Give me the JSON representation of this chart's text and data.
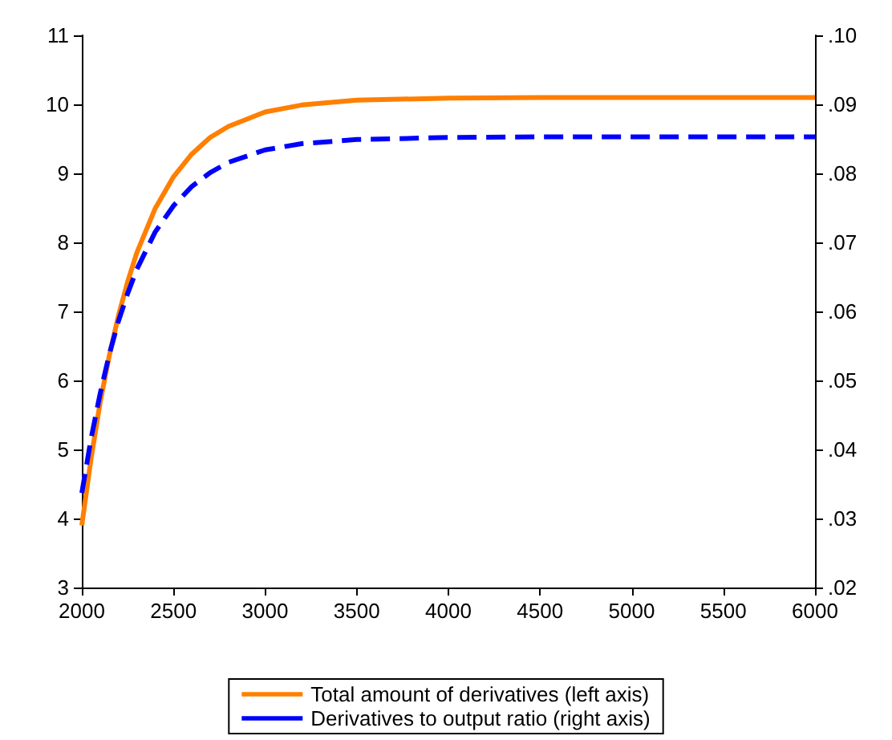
{
  "chart_data": {
    "type": "line",
    "x": [
      2000,
      2050,
      2100,
      2150,
      2200,
      2250,
      2300,
      2400,
      2500,
      2600,
      2700,
      2800,
      3000,
      3200,
      3500,
      4000,
      4500,
      5000,
      6000
    ],
    "series": [
      {
        "name": "Total amount of derivatives (left axis)",
        "color": "#ff7f00",
        "line_style": "solid",
        "values": [
          3.9,
          4.86,
          5.68,
          6.36,
          6.94,
          7.43,
          7.85,
          8.49,
          8.95,
          9.28,
          9.52,
          9.68,
          9.89,
          9.99,
          10.06,
          10.09,
          10.1,
          10.1,
          10.1
        ]
      },
      {
        "name": "Derivatives to output ratio (right axis)",
        "color": "#0000ff",
        "line_style": "dashed",
        "axis": "y2",
        "values": [
          0.0337,
          0.0415,
          0.0481,
          0.0538,
          0.0586,
          0.0626,
          0.0661,
          0.0715,
          0.0753,
          0.0781,
          0.0801,
          0.0816,
          0.0834,
          0.0843,
          0.0849,
          0.0852,
          0.0853,
          0.0853,
          0.0853
        ]
      }
    ],
    "xlim": [
      2000,
      6000
    ],
    "xticks": [
      2000,
      2500,
      3000,
      3500,
      4000,
      4500,
      5000,
      5500,
      6000
    ],
    "ylim": [
      3,
      11
    ],
    "yticks": [
      3,
      4,
      5,
      6,
      7,
      8,
      9,
      10,
      11
    ],
    "y2lim": [
      0.02,
      0.1
    ],
    "y2ticks": [
      {
        "value": 0.02,
        "label": ".02"
      },
      {
        "value": 0.03,
        "label": ".03"
      },
      {
        "value": 0.04,
        "label": ".04"
      },
      {
        "value": 0.05,
        "label": ".05"
      },
      {
        "value": 0.06,
        "label": ".06"
      },
      {
        "value": 0.07,
        "label": ".07"
      },
      {
        "value": 0.08,
        "label": ".08"
      },
      {
        "value": 0.09,
        "label": ".09"
      },
      {
        "value": 0.1,
        "label": ".10"
      }
    ],
    "grid": false,
    "legend": "bottom",
    "marker": "none"
  }
}
